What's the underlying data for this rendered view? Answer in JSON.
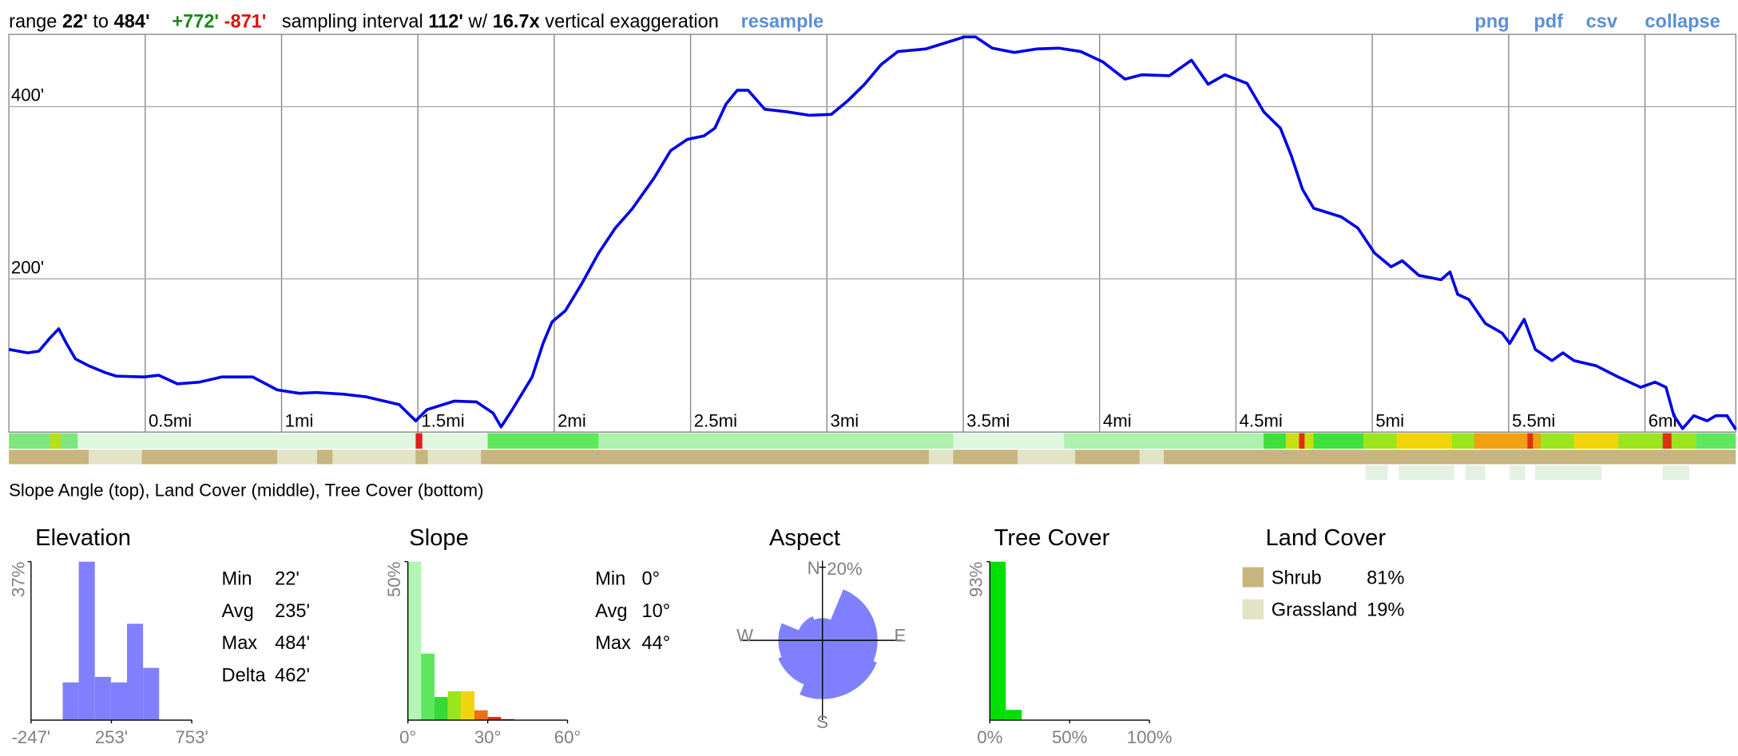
{
  "header": {
    "range_label": "range",
    "min": "22'",
    "to": "to",
    "max": "484'",
    "gain": "+772'",
    "loss": "-871'",
    "interval_label": "sampling interval",
    "interval": "112'",
    "with": "w/",
    "exaggeration": "16.7x",
    "exaggeration_label": "vertical exaggeration",
    "resample": "resample"
  },
  "links": [
    "png",
    "pdf",
    "csv",
    "collapse"
  ],
  "caption": "Slope Angle (top), Land Cover (middle), Tree Cover (bottom)",
  "chart_data": [
    {
      "type": "line",
      "color": "#0000e6",
      "grid": true,
      "x": [
        0,
        0.069,
        0.11,
        0.15,
        0.183,
        0.211,
        0.244,
        0.293,
        0.354,
        0.394,
        0.496,
        0.549,
        0.618,
        0.699,
        0.78,
        0.894,
        0.984,
        1.065,
        1.126,
        1.228,
        1.309,
        1.431,
        1.492,
        1.533,
        1.634,
        1.715,
        1.776,
        1.805,
        1.846,
        1.919,
        1.959,
        1.992,
        2.041,
        2.102,
        2.163,
        2.224,
        2.285,
        2.366,
        2.427,
        2.488,
        2.549,
        2.589,
        2.63,
        2.671,
        2.711,
        2.772,
        2.854,
        2.935,
        3.016,
        3.077,
        3.138,
        3.199,
        3.26,
        3.362,
        3.443,
        3.504,
        3.545,
        3.606,
        3.687,
        3.768,
        3.85,
        3.931,
        4.012,
        4.093,
        4.154,
        4.256,
        4.337,
        4.398,
        4.459,
        4.541,
        4.602,
        4.663,
        4.703,
        4.744,
        4.785,
        4.886,
        4.947,
        5.008,
        5.069,
        5.11,
        5.171,
        5.252,
        5.285,
        5.313,
        5.354,
        5.415,
        5.476,
        5.504,
        5.557,
        5.598,
        5.659,
        5.699,
        5.74,
        5.821,
        5.902,
        5.984,
        6.037,
        6.077,
        6.106,
        6.138,
        6.179,
        6.228,
        6.26,
        6.301,
        6.333
      ],
      "values": [
        118,
        114,
        116,
        131,
        142,
        125,
        107,
        99,
        91,
        87,
        86,
        88,
        78,
        80,
        86,
        86,
        71,
        67,
        68,
        66,
        63,
        54,
        35,
        48,
        58,
        57,
        44,
        28,
        48,
        86,
        125,
        150,
        163,
        195,
        230,
        259,
        281,
        317,
        349,
        362,
        366,
        375,
        403,
        419,
        419,
        397,
        394,
        390,
        391,
        407,
        426,
        449,
        464,
        467,
        475,
        481,
        481,
        468,
        463,
        467,
        468,
        464,
        452,
        432,
        437,
        436,
        454,
        426,
        437,
        427,
        394,
        375,
        343,
        304,
        282,
        272,
        259,
        230,
        214,
        221,
        204,
        199,
        208,
        182,
        176,
        148,
        137,
        125,
        153,
        118,
        105,
        114,
        105,
        99,
        86,
        74,
        80,
        74,
        41,
        26,
        41,
        35,
        41,
        41,
        25
      ],
      "xlim": [
        0,
        6.333
      ],
      "ylim": [
        22,
        484
      ],
      "xticks": [
        {
          "value": 0.5,
          "label": "0.5mi"
        },
        {
          "value": 1,
          "label": "1mi"
        },
        {
          "value": 1.5,
          "label": "1.5mi"
        },
        {
          "value": 2,
          "label": "2mi"
        },
        {
          "value": 2.5,
          "label": "2.5mi"
        },
        {
          "value": 3,
          "label": "3mi"
        },
        {
          "value": 3.5,
          "label": "3.5mi"
        },
        {
          "value": 4,
          "label": "4mi"
        },
        {
          "value": 4.5,
          "label": "4.5mi"
        },
        {
          "value": 5,
          "label": "5mi"
        },
        {
          "value": 5.5,
          "label": "5.5mi"
        },
        {
          "value": 6,
          "label": "6mi"
        }
      ],
      "yticks": [
        {
          "value": 200,
          "label": "200'"
        },
        {
          "value": 400,
          "label": "400'"
        }
      ]
    },
    {
      "type": "histogram",
      "title": "Elevation",
      "color": "#8080ff",
      "bins": [
        -50,
        50,
        150,
        250,
        350,
        450,
        550
      ],
      "values": [
        8.8,
        37,
        10.1,
        8.8,
        22.5,
        12.2
      ],
      "xlim": [
        -247,
        753
      ],
      "xticks": [
        {
          "value": -247,
          "label": "-247'"
        },
        {
          "value": 253,
          "label": "253'"
        },
        {
          "value": 753,
          "label": "753'"
        }
      ],
      "ylim": [
        0,
        37
      ],
      "yticks": [
        {
          "value": 37,
          "label": "37%"
        }
      ]
    },
    {
      "type": "histogram",
      "title": "Slope",
      "colors": [
        "#b3f5b3",
        "#5ee65e",
        "#36d936",
        "#9be51c",
        "#f2d40a",
        "#f07010",
        "#e53010",
        "#c01010"
      ],
      "bins": [
        0,
        5,
        10,
        15,
        20,
        25,
        30,
        35,
        40
      ],
      "values": [
        50,
        21,
        7.3,
        9.1,
        9.1,
        3.1,
        1,
        0.3
      ],
      "xlim": [
        0,
        60
      ],
      "xticks": [
        {
          "value": 0,
          "label": "0°"
        },
        {
          "value": 30,
          "label": "30°"
        },
        {
          "value": 60,
          "label": "60°"
        }
      ],
      "ylim": [
        0,
        50
      ],
      "yticks": [
        {
          "value": 50,
          "label": "50%"
        }
      ]
    },
    {
      "type": "rose",
      "title": "Aspect",
      "color": "#8080ff",
      "categories": [
        "N",
        null,
        "E",
        null,
        "S",
        null,
        "W",
        null
      ],
      "values": [
        6,
        15,
        15,
        16,
        16,
        13,
        12,
        7
      ],
      "rlim": [
        0,
        20
      ],
      "rticks": [
        {
          "value": 20,
          "label": "20%"
        }
      ]
    },
    {
      "type": "histogram",
      "title": "Tree Cover",
      "color": "#00e000",
      "bins": [
        0,
        10,
        20,
        30,
        40,
        50,
        60,
        70,
        80,
        90,
        100
      ],
      "values": [
        93,
        6,
        0,
        0,
        0,
        0,
        0,
        0,
        0,
        0
      ],
      "xlim": [
        0,
        100
      ],
      "xticks": [
        {
          "value": 0,
          "label": "0%"
        },
        {
          "value": 50,
          "label": "50%"
        },
        {
          "value": 100,
          "label": "100%"
        }
      ],
      "ylim": [
        0,
        93
      ],
      "yticks": [
        {
          "value": 93,
          "label": "93%"
        }
      ]
    }
  ],
  "elevation_stats": [
    [
      "Min",
      "22'"
    ],
    [
      "Avg",
      "235'"
    ],
    [
      "Max",
      "484'"
    ],
    [
      "Delta",
      "462'"
    ]
  ],
  "slope_stats": [
    [
      "Min",
      "0°"
    ],
    [
      "Avg",
      "10°"
    ],
    [
      "Max",
      "44°"
    ]
  ],
  "land_cover": {
    "title": "Land Cover",
    "items": [
      {
        "name": "Shrub",
        "color": "#c8b47e",
        "value": "81%"
      },
      {
        "name": "Grassland",
        "color": "#e3e3c6",
        "value": "19%"
      }
    ]
  }
}
